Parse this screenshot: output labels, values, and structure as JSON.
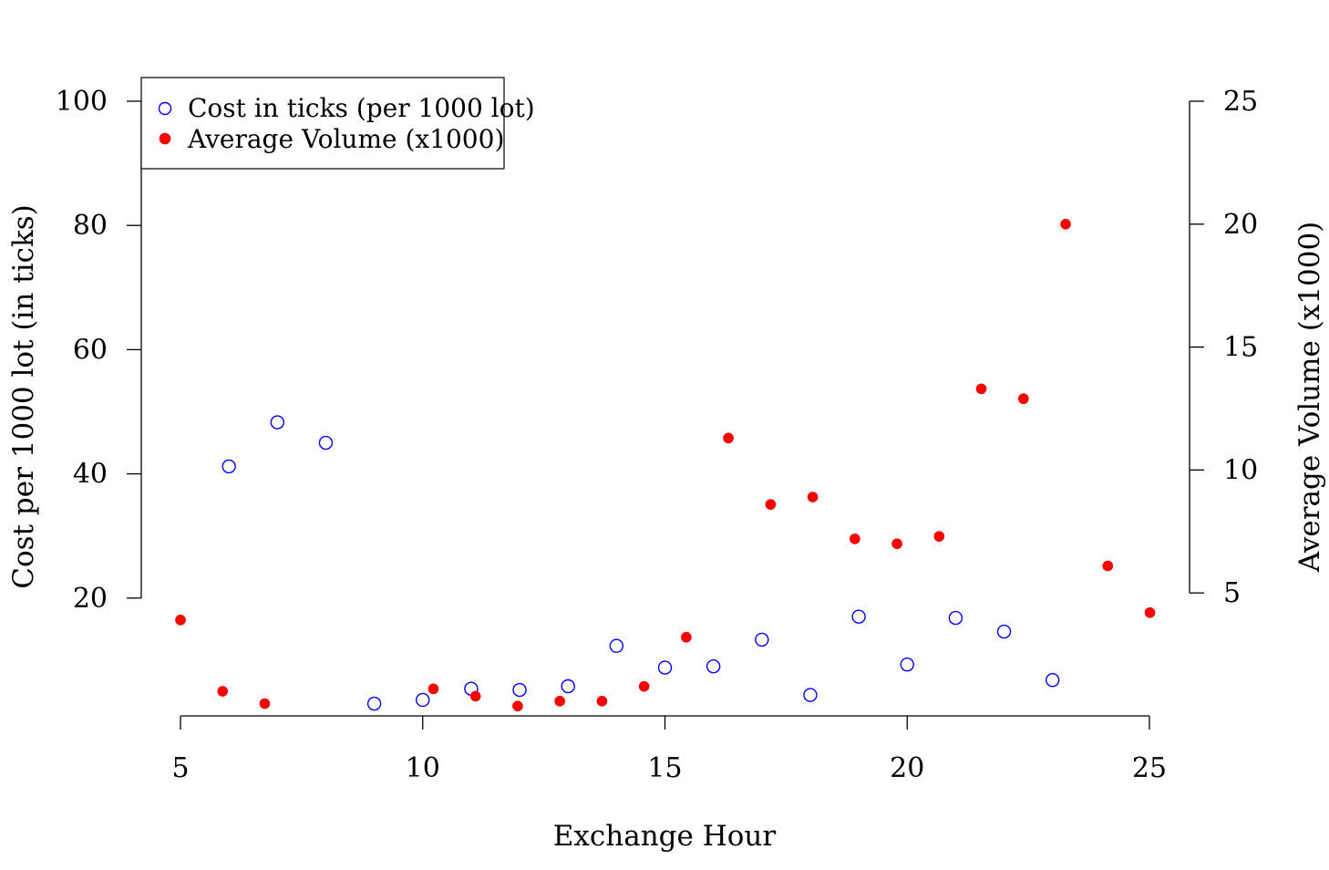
{
  "chart_data": {
    "type": "scatter",
    "title": "",
    "xlabel": "Exchange Hour",
    "ylabel": "Cost per 1000 lot (in ticks)",
    "y2label": "Average Volume (x1000)",
    "xlim": [
      5,
      25
    ],
    "ylim": [
      0,
      100
    ],
    "y2lim": [
      0,
      25
    ],
    "x_ticks": [
      "5",
      "10",
      "15",
      "20",
      "25"
    ],
    "y_ticks": [
      "20",
      "40",
      "60",
      "80",
      "100"
    ],
    "y2_ticks": [
      "5",
      "10",
      "15",
      "20",
      "25"
    ],
    "grid": false,
    "legend_position": "top-left",
    "series": [
      {
        "name": "Cost in ticks (per 1000 lot)",
        "axis": "left",
        "marker": "open-circle",
        "color": "#0000ff",
        "x": [
          6,
          7,
          8,
          9,
          10,
          11,
          12,
          13,
          14,
          15,
          16,
          17,
          18,
          19,
          20,
          21,
          22,
          23
        ],
        "y": [
          41.2,
          48.3,
          45.0,
          3.0,
          3.6,
          5.4,
          5.2,
          5.8,
          12.3,
          8.8,
          9.0,
          13.3,
          4.4,
          17.0,
          9.3,
          16.8,
          14.6,
          6.8
        ]
      },
      {
        "name": "Average Volume (x1000)",
        "axis": "right",
        "marker": "filled-circle",
        "color": "#ff0000",
        "x": [
          5,
          5.87,
          6.74,
          7.61,
          8.48,
          9.35,
          10.22,
          11.09,
          11.96,
          12.83,
          13.7,
          14.57,
          15.44,
          16.31,
          17.18,
          18.05,
          18.92,
          19.79,
          20.66,
          21.53,
          22.4,
          23.27,
          24.14,
          25.01
        ],
        "y": [
          3.9,
          1.0,
          0.5,
          null,
          null,
          null,
          1.1,
          0.8,
          0.4,
          0.6,
          0.6,
          1.2,
          3.2,
          11.3,
          8.6,
          8.9,
          7.2,
          7.0,
          7.3,
          13.3,
          12.9,
          20.0,
          6.1,
          4.2
        ]
      }
    ]
  }
}
